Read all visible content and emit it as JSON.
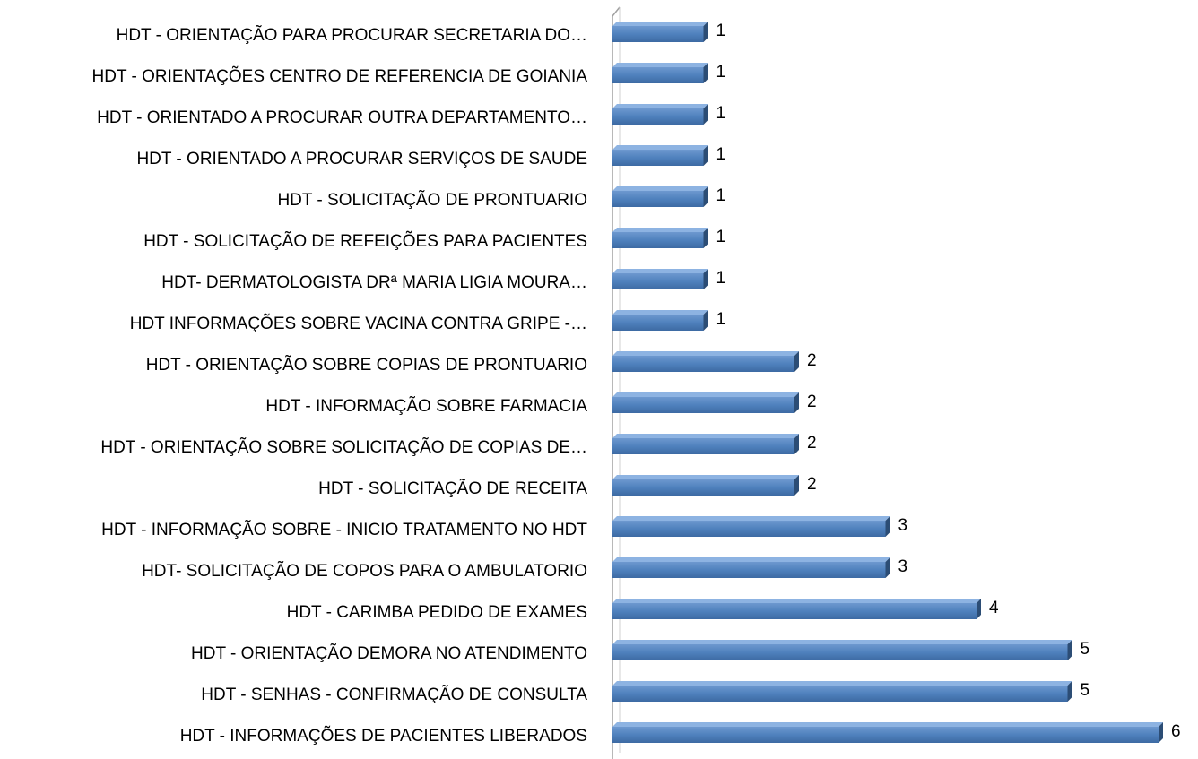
{
  "chart_data": {
    "type": "bar",
    "orientation": "horizontal",
    "color": "#4f81bd",
    "categories": [
      "HDT - ORIENTAÇÃO PARA PROCURAR SECRETARIA DO…",
      "HDT - ORIENTAÇÕES CENTRO DE REFERENCIA DE GOIANIA",
      "HDT - ORIENTADO A PROCURAR OUTRA DEPARTAMENTO…",
      "HDT - ORIENTADO A PROCURAR SERVIÇOS DE SAUDE",
      "HDT - SOLICITAÇÃO DE PRONTUARIO",
      "HDT - SOLICITAÇÃO DE REFEIÇÕES PARA PACIENTES",
      "HDT- DERMATOLOGISTA DRª MARIA LIGIA MOURA…",
      "HDT INFORMAÇÕES SOBRE VACINA CONTRA GRIPE -…",
      "HDT -  ORIENTAÇÃO SOBRE COPIAS DE PRONTUARIO",
      "HDT - INFORMAÇÃO SOBRE FARMACIA",
      "HDT - ORIENTAÇÃO SOBRE SOLICITAÇÃO DE COPIAS DE…",
      "HDT - SOLICITAÇÃO DE RECEITA",
      "HDT - INFORMAÇÃO SOBRE - INICIO TRATAMENTO NO HDT",
      "HDT- SOLICITAÇÃO DE COPOS PARA O AMBULATORIO",
      "HDT - CARIMBA PEDIDO DE EXAMES",
      "HDT - ORIENTAÇÃO DEMORA NO ATENDIMENTO",
      "HDT - SENHAS - CONFIRMAÇÃO DE CONSULTA",
      "HDT - INFORMAÇÕES DE PACIENTES LIBERADOS"
    ],
    "values": [
      1,
      1,
      1,
      1,
      1,
      1,
      1,
      1,
      2,
      2,
      2,
      2,
      3,
      3,
      4,
      5,
      5,
      6
    ]
  }
}
